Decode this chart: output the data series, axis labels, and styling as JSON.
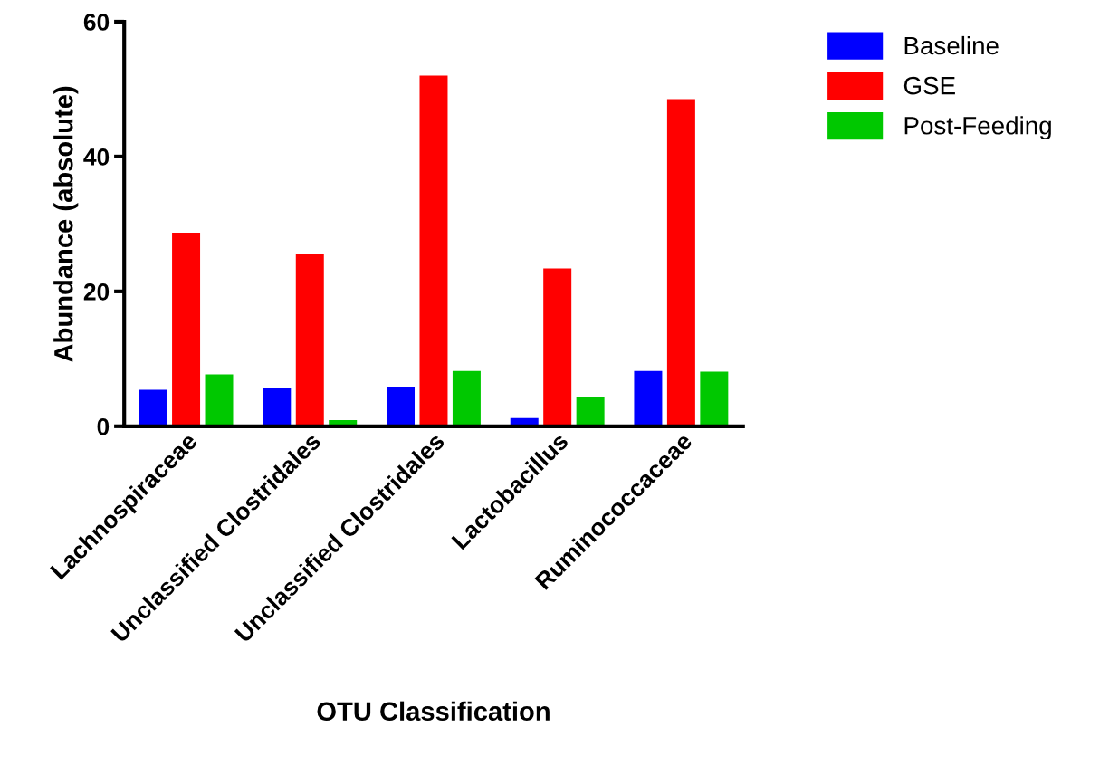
{
  "chart_data": {
    "type": "bar",
    "xlabel": "OTU Classification",
    "ylabel": "Abundance (absolute)",
    "categories": [
      "Lachnospiraceae",
      "Unclassified Clostridales",
      "Unclassified Clostridales",
      "Lactobacillus",
      "Ruminococcaceae"
    ],
    "series": [
      {
        "name": "Baseline",
        "color": "#0000ff",
        "values": [
          5.4,
          5.6,
          5.8,
          1.2,
          8.2
        ]
      },
      {
        "name": "GSE",
        "color": "#ff0000",
        "values": [
          28.7,
          25.6,
          52,
          23.4,
          48.5
        ]
      },
      {
        "name": "Post-Feeding",
        "color": "#00c800",
        "values": [
          7.7,
          0.9,
          8.2,
          4.3,
          8.1
        ]
      }
    ],
    "ylim": [
      0,
      60
    ],
    "yticks": [
      0,
      20,
      40,
      60
    ],
    "grid": false,
    "legend": "top right"
  }
}
